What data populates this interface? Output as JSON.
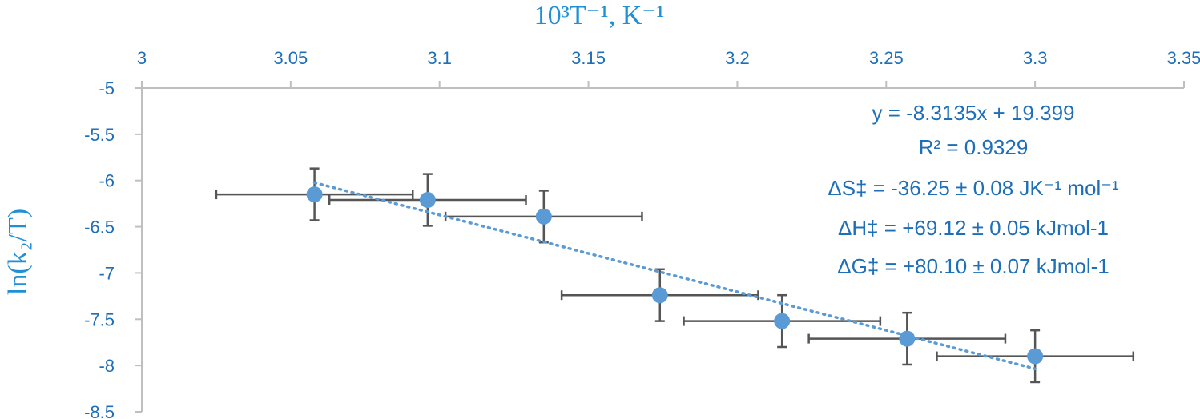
{
  "chart_data": {
    "type": "scatter",
    "xlabel": "10³T⁻¹, K⁻¹",
    "ylabel": "ln(k₂/T)",
    "xlim": [
      3,
      3.35
    ],
    "ylim": [
      -8.5,
      -5
    ],
    "x_ticks": [
      "3",
      "3.05",
      "3.1",
      "3.15",
      "3.2",
      "3.25",
      "3.3",
      "3.35"
    ],
    "y_ticks": [
      "-5",
      "-5.5",
      "-6",
      "-6.5",
      "-7",
      "-7.5",
      "-8",
      "-8.5"
    ],
    "x_tick_values": [
      3,
      3.05,
      3.1,
      3.15,
      3.2,
      3.25,
      3.3,
      3.35
    ],
    "y_tick_values": [
      -5,
      -5.5,
      -6,
      -6.5,
      -7,
      -7.5,
      -8,
      -8.5
    ],
    "x_axis_position": "top",
    "grid": false,
    "series": [
      {
        "points": [
          {
            "x": 3.058,
            "y": -6.15,
            "xerr": 0.033,
            "yerr": 0.28
          },
          {
            "x": 3.096,
            "y": -6.21,
            "xerr": 0.033,
            "yerr": 0.28
          },
          {
            "x": 3.135,
            "y": -6.39,
            "xerr": 0.033,
            "yerr": 0.28
          },
          {
            "x": 3.174,
            "y": -7.24,
            "xerr": 0.033,
            "yerr": 0.28
          },
          {
            "x": 3.215,
            "y": -7.52,
            "xerr": 0.033,
            "yerr": 0.28
          },
          {
            "x": 3.257,
            "y": -7.71,
            "xerr": 0.033,
            "yerr": 0.28
          },
          {
            "x": 3.3,
            "y": -7.9,
            "xerr": 0.033,
            "yerr": 0.28
          }
        ],
        "color": "#5b9bd5"
      }
    ],
    "trendline": {
      "slope": -8.3135,
      "intercept": 19.399,
      "x_range": [
        3.058,
        3.3
      ],
      "style": "dotted"
    },
    "annotations": [
      "y = -8.3135x + 19.399",
      "R² = 0.9329",
      "ΔS‡ = -36.25 ± 0.08 JK⁻¹ mol⁻¹",
      "ΔH‡ = +69.12 ± 0.05 kJmol-1",
      "ΔG‡ = +80.10 ± 0.07 kJmol-1"
    ]
  }
}
